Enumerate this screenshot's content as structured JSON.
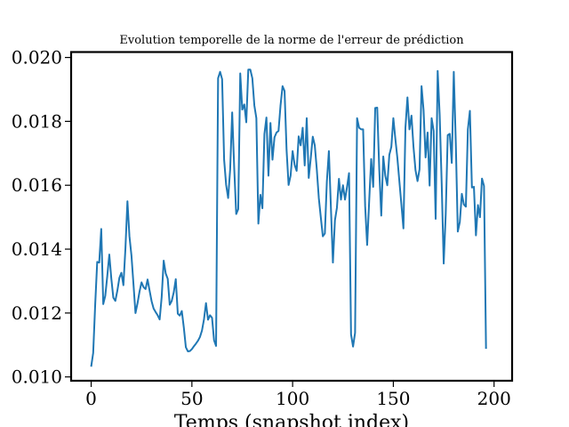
{
  "chart_data": {
    "type": "line",
    "title": "Evolution temporelle de la norme de l'erreur de prédiction",
    "xlabel": "Temps (snapshot index)",
    "ylabel": "",
    "xlim": [
      -9.95,
      208.95
    ],
    "ylim": [
      0.00988,
      0.02017
    ],
    "x_ticks": [
      0,
      50,
      100,
      150,
      200
    ],
    "x_tick_labels": [
      "0",
      "50",
      "100",
      "150",
      "200"
    ],
    "y_ticks": [
      0.01,
      0.012,
      0.014,
      0.016,
      0.018,
      0.02
    ],
    "y_tick_labels": [
      "0.010",
      "0.012",
      "0.014",
      "0.016",
      "0.018",
      "0.020"
    ],
    "grid": false,
    "legend": "none",
    "series": [
      {
        "color": "#1f77b4",
        "x_start": 0,
        "x_step": 1,
        "values": [
          0.01032,
          0.01075,
          0.01227,
          0.0136,
          0.01358,
          0.01463,
          0.01228,
          0.01254,
          0.01316,
          0.01383,
          0.01308,
          0.01248,
          0.01238,
          0.0127,
          0.0131,
          0.01326,
          0.01287,
          0.01402,
          0.0155,
          0.0144,
          0.0138,
          0.0129,
          0.012,
          0.0123,
          0.01267,
          0.01296,
          0.01281,
          0.01275,
          0.01305,
          0.0127,
          0.01237,
          0.01214,
          0.01203,
          0.01193,
          0.0118,
          0.0125,
          0.01364,
          0.01324,
          0.01307,
          0.01226,
          0.01238,
          0.01265,
          0.01306,
          0.01198,
          0.01192,
          0.01206,
          0.01154,
          0.01093,
          0.0108,
          0.01081,
          0.01087,
          0.01096,
          0.01104,
          0.01113,
          0.01125,
          0.01145,
          0.0118,
          0.01231,
          0.01179,
          0.01193,
          0.01185,
          0.01115,
          0.01097,
          0.01935,
          0.01955,
          0.01932,
          0.0168,
          0.01601,
          0.0156,
          0.0165,
          0.01828,
          0.01655,
          0.0151,
          0.01525,
          0.0195,
          0.01837,
          0.01853,
          0.01797,
          0.01962,
          0.01962,
          0.01935,
          0.0185,
          0.0181,
          0.0148,
          0.0157,
          0.01528,
          0.0176,
          0.01812,
          0.0163,
          0.01795,
          0.0168,
          0.0175,
          0.01765,
          0.0177,
          0.0185,
          0.0191,
          0.01895,
          0.0171,
          0.01601,
          0.0163,
          0.01707,
          0.01664,
          0.01645,
          0.01753,
          0.01725,
          0.0178,
          0.01662,
          0.0181,
          0.01623,
          0.01685,
          0.01752,
          0.01725,
          0.0165,
          0.0156,
          0.01499,
          0.0144,
          0.01449,
          0.01612,
          0.01707,
          0.01532,
          0.01358,
          0.0149,
          0.0153,
          0.0162,
          0.01555,
          0.016,
          0.01555,
          0.01594,
          0.01638,
          0.01133,
          0.01095,
          0.01138,
          0.0181,
          0.0178,
          0.01775,
          0.01775,
          0.01535,
          0.01413,
          0.0155,
          0.01682,
          0.01595,
          0.01842,
          0.01843,
          0.0165,
          0.01505,
          0.0169,
          0.0163,
          0.016,
          0.01695,
          0.0172,
          0.0181,
          0.01745,
          0.01685,
          0.01612,
          0.0154,
          0.01465,
          0.0178,
          0.01875,
          0.01775,
          0.01818,
          0.0172,
          0.01647,
          0.01613,
          0.0165,
          0.0191,
          0.01835,
          0.01687,
          0.01765,
          0.01599,
          0.0181,
          0.0177,
          0.01495,
          0.01958,
          0.0182,
          0.01605,
          0.01355,
          0.0151,
          0.01757,
          0.01761,
          0.0167,
          0.01955,
          0.01733,
          0.01455,
          0.01485,
          0.01573,
          0.0154,
          0.01533,
          0.01775,
          0.01833,
          0.01593,
          0.01595,
          0.01443,
          0.01538,
          0.015,
          0.01621,
          0.01598,
          0.01088
        ]
      }
    ]
  }
}
